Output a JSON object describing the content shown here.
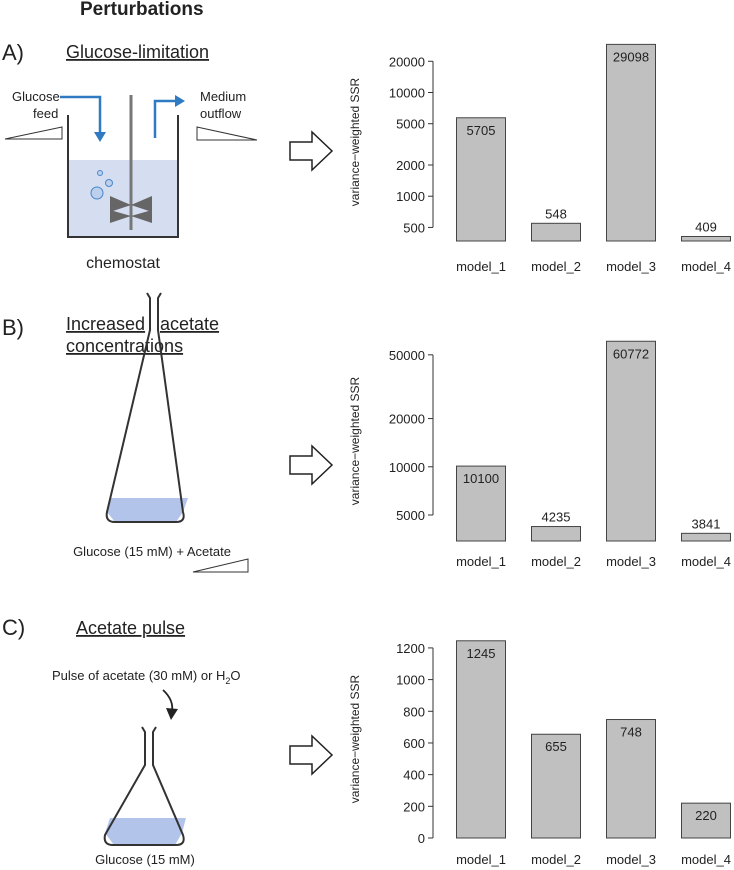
{
  "title": "Perturbations",
  "panels": [
    {
      "label": "A)",
      "heading": [
        "Glucose-limitation"
      ],
      "diagram": {
        "feed": [
          "Glucose",
          "feed"
        ],
        "outflow": [
          "Medium",
          "outflow"
        ],
        "caption": "chemostat"
      }
    },
    {
      "label": "B)",
      "heading": [
        "Increased",
        "acetate",
        "concentrations"
      ],
      "diagram": {
        "caption": "Glucose (15 mM) + Acetate"
      }
    },
    {
      "label": "C)",
      "heading": [
        "Acetate pulse"
      ],
      "diagram": {
        "annotation": [
          "Pulse of acetate (30 mM) or H",
          "2",
          "O"
        ],
        "caption": "Glucose (15 mM)"
      }
    }
  ],
  "chart_data": [
    {
      "type": "bar",
      "ylabel": "variance−weighted SSR",
      "categories": [
        "model_1",
        "model_2",
        "model_3",
        "model_4"
      ],
      "values": [
        5705,
        548,
        29098,
        409
      ],
      "log_scale": true,
      "ylim": [
        370,
        30000
      ],
      "yticks": [
        500,
        1000,
        2000,
        5000,
        10000,
        20000
      ],
      "color": "#c0c0c0"
    },
    {
      "type": "bar",
      "ylabel": "variance−weighted SSR",
      "categories": [
        "model_1",
        "model_2",
        "model_3",
        "model_4"
      ],
      "values": [
        10100,
        4235,
        60772,
        3841
      ],
      "log_scale": true,
      "ylim": [
        3440,
        61000
      ],
      "yticks": [
        5000,
        10000,
        20000,
        50000
      ],
      "color": "#c0c0c0"
    },
    {
      "type": "bar",
      "ylabel": "variance−weighted SSR",
      "categories": [
        "model_1",
        "model_2",
        "model_3",
        "model_4"
      ],
      "values": [
        1245,
        655,
        748,
        220
      ],
      "log_scale": false,
      "ylim": [
        0,
        1250
      ],
      "yticks": [
        0,
        200,
        400,
        600,
        800,
        1000,
        1200
      ],
      "color": "#c0c0c0"
    }
  ]
}
